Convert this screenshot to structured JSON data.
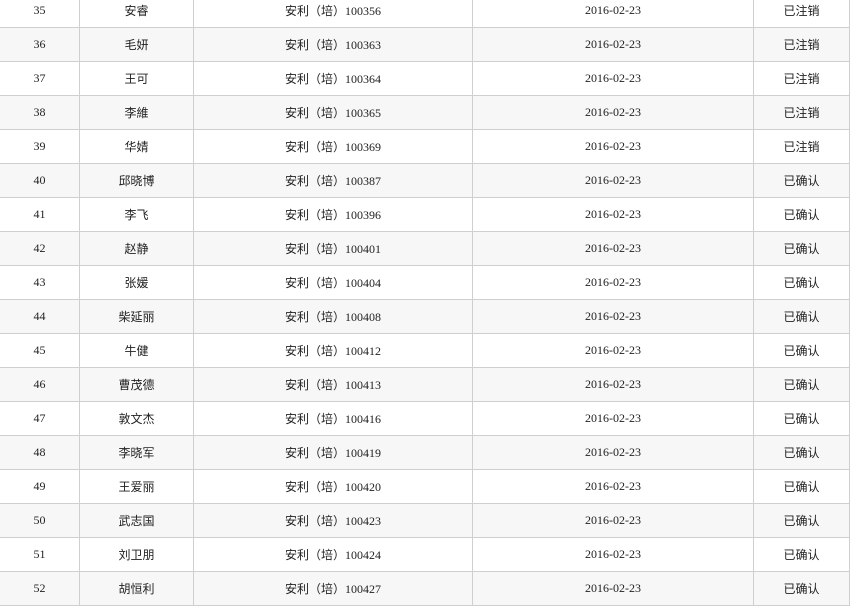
{
  "rows": [
    {
      "no": "35",
      "name": "安睿",
      "code": "安利（培）100356",
      "date": "2016-02-23",
      "status": "已注销"
    },
    {
      "no": "36",
      "name": "毛妍",
      "code": "安利（培）100363",
      "date": "2016-02-23",
      "status": "已注销"
    },
    {
      "no": "37",
      "name": "王可",
      "code": "安利（培）100364",
      "date": "2016-02-23",
      "status": "已注销"
    },
    {
      "no": "38",
      "name": "李維",
      "code": "安利（培）100365",
      "date": "2016-02-23",
      "status": "已注销"
    },
    {
      "no": "39",
      "name": "华婧",
      "code": "安利（培）100369",
      "date": "2016-02-23",
      "status": "已注销"
    },
    {
      "no": "40",
      "name": "邱晓博",
      "code": "安利（培）100387",
      "date": "2016-02-23",
      "status": "已确认"
    },
    {
      "no": "41",
      "name": "李飞",
      "code": "安利（培）100396",
      "date": "2016-02-23",
      "status": "已确认"
    },
    {
      "no": "42",
      "name": "赵静",
      "code": "安利（培）100401",
      "date": "2016-02-23",
      "status": "已确认"
    },
    {
      "no": "43",
      "name": "张媛",
      "code": "安利（培）100404",
      "date": "2016-02-23",
      "status": "已确认"
    },
    {
      "no": "44",
      "name": "柴延丽",
      "code": "安利（培）100408",
      "date": "2016-02-23",
      "status": "已确认"
    },
    {
      "no": "45",
      "name": "牛健",
      "code": "安利（培）100412",
      "date": "2016-02-23",
      "status": "已确认"
    },
    {
      "no": "46",
      "name": "曹茂德",
      "code": "安利（培）100413",
      "date": "2016-02-23",
      "status": "已确认"
    },
    {
      "no": "47",
      "name": "敦文杰",
      "code": "安利（培）100416",
      "date": "2016-02-23",
      "status": "已确认"
    },
    {
      "no": "48",
      "name": "李晓军",
      "code": "安利（培）100419",
      "date": "2016-02-23",
      "status": "已确认"
    },
    {
      "no": "49",
      "name": "王爱丽",
      "code": "安利（培）100420",
      "date": "2016-02-23",
      "status": "已确认"
    },
    {
      "no": "50",
      "name": "武志国",
      "code": "安利（培）100423",
      "date": "2016-02-23",
      "status": "已确认"
    },
    {
      "no": "51",
      "name": "刘卫朋",
      "code": "安利（培）100424",
      "date": "2016-02-23",
      "status": "已确认"
    },
    {
      "no": "52",
      "name": "胡恒利",
      "code": "安利（培）100427",
      "date": "2016-02-23",
      "status": "已确认"
    }
  ]
}
